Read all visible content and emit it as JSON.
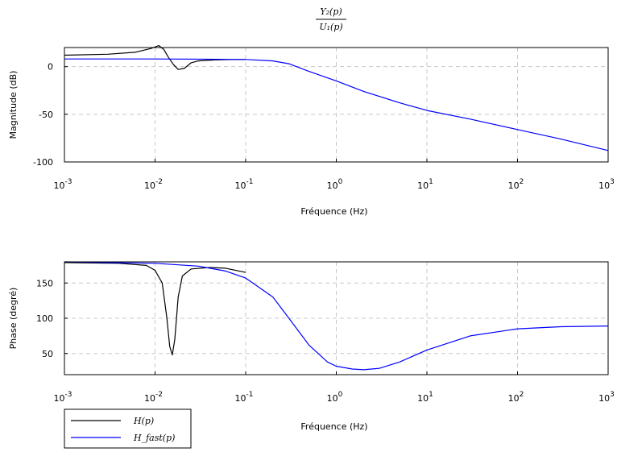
{
  "chart_data": [
    {
      "type": "line",
      "title_numerator": "Y₂(p)",
      "title_denominator": "U₁(p)",
      "xlabel": "Fréquence (Hz)",
      "ylabel": "Magnitude (dB)",
      "xscale": "log",
      "xlim": [
        0.001,
        1000
      ],
      "ylim": [
        -100,
        20
      ],
      "xticks": [
        0.001,
        0.01,
        0.1,
        1,
        10,
        100,
        1000
      ],
      "yticks": [
        0,
        -50,
        -100
      ],
      "grid": true,
      "series": [
        {
          "name": "H(p)",
          "color": "#000000",
          "points": [
            [
              0.001,
              12
            ],
            [
              0.003,
              13
            ],
            [
              0.006,
              15
            ],
            [
              0.009,
              19
            ],
            [
              0.011,
              22
            ],
            [
              0.0125,
              18
            ],
            [
              0.014,
              10
            ],
            [
              0.016,
              2
            ],
            [
              0.018,
              -3
            ],
            [
              0.021,
              -2
            ],
            [
              0.025,
              4
            ],
            [
              0.03,
              6
            ],
            [
              0.045,
              7
            ],
            [
              0.07,
              7.5
            ],
            [
              0.1,
              7.5
            ]
          ]
        },
        {
          "name": "H_fast(p)",
          "color": "#0000ff",
          "points": [
            [
              0.001,
              8
            ],
            [
              0.01,
              8
            ],
            [
              0.1,
              7.5
            ],
            [
              0.2,
              6
            ],
            [
              0.3,
              3
            ],
            [
              0.5,
              -5
            ],
            [
              1,
              -15
            ],
            [
              2,
              -26
            ],
            [
              5,
              -38
            ],
            [
              10,
              -46
            ],
            [
              30,
              -55
            ],
            [
              100,
              -66
            ],
            [
              300,
              -76
            ],
            [
              1000,
              -88
            ]
          ]
        }
      ]
    },
    {
      "type": "line",
      "xlabel": "Fréquence (Hz)",
      "ylabel": "Phase (degré)",
      "xscale": "log",
      "xlim": [
        0.001,
        1000
      ],
      "ylim": [
        20,
        180
      ],
      "xticks": [
        0.001,
        0.01,
        0.1,
        1,
        10,
        100,
        1000
      ],
      "yticks": [
        150,
        100,
        50
      ],
      "grid": true,
      "series": [
        {
          "name": "H(p)",
          "color": "#000000",
          "points": [
            [
              0.001,
              179
            ],
            [
              0.004,
              178
            ],
            [
              0.008,
              175
            ],
            [
              0.01,
              168
            ],
            [
              0.012,
              150
            ],
            [
              0.0135,
              100
            ],
            [
              0.0145,
              60
            ],
            [
              0.0155,
              48
            ],
            [
              0.0165,
              70
            ],
            [
              0.018,
              130
            ],
            [
              0.02,
              160
            ],
            [
              0.025,
              170
            ],
            [
              0.04,
              172
            ],
            [
              0.06,
              171
            ],
            [
              0.1,
              165
            ]
          ]
        },
        {
          "name": "H_fast(p)",
          "color": "#0000ff",
          "points": [
            [
              0.001,
              180
            ],
            [
              0.01,
              178
            ],
            [
              0.03,
              174
            ],
            [
              0.06,
              167
            ],
            [
              0.1,
              157
            ],
            [
              0.2,
              130
            ],
            [
              0.3,
              100
            ],
            [
              0.5,
              62
            ],
            [
              0.8,
              38
            ],
            [
              1,
              32
            ],
            [
              1.5,
              28
            ],
            [
              2,
              27
            ],
            [
              3,
              29
            ],
            [
              5,
              38
            ],
            [
              10,
              55
            ],
            [
              30,
              75
            ],
            [
              100,
              85
            ],
            [
              300,
              88
            ],
            [
              1000,
              89
            ]
          ]
        }
      ]
    }
  ],
  "legend": [
    {
      "label": "H(p)",
      "color": "#000000"
    },
    {
      "label": "H_fast(p)",
      "color": "#0000ff"
    }
  ]
}
